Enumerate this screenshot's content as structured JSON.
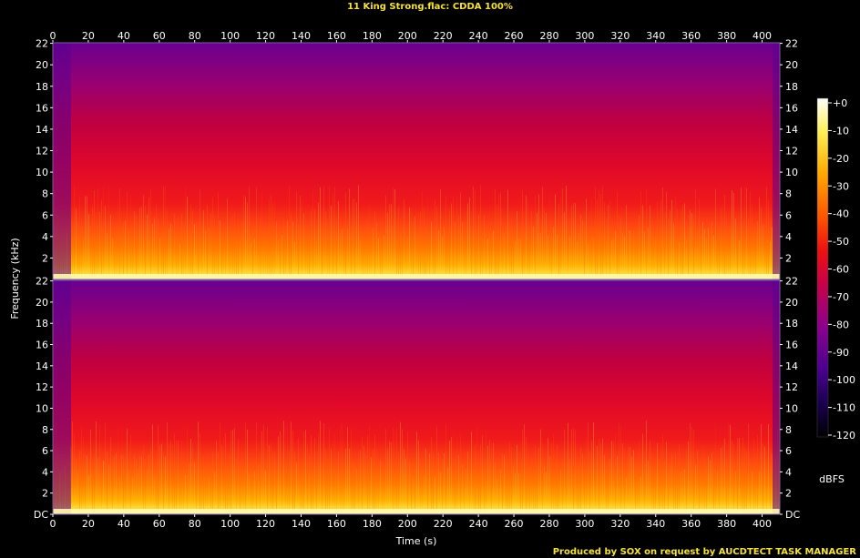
{
  "window": {
    "title": "11 King Strong.flac: CDDA 100%",
    "footer": "Produced by SOX on request by AUCDTECT TASK MANAGER"
  },
  "chart_data": {
    "type": "heatmap",
    "title": "11 King Strong.flac: CDDA 100%",
    "xlabel": "Time (s)",
    "ylabel": "Frequency (kHz)",
    "xlim": [
      0,
      410
    ],
    "x_ticks": [
      "0",
      "20",
      "40",
      "60",
      "80",
      "100",
      "120",
      "140",
      "160",
      "180",
      "200",
      "220",
      "240",
      "260",
      "280",
      "300",
      "320",
      "340",
      "360",
      "380",
      "400"
    ],
    "ylim": [
      0,
      22.05
    ],
    "y_ticks": [
      "DC",
      "2",
      "4",
      "6",
      "8",
      "10",
      "12",
      "14",
      "16",
      "18",
      "20",
      "22"
    ],
    "channels": 2,
    "colorbar": {
      "label": "dBFS",
      "range": [
        -120,
        0
      ],
      "ticks": [
        "+0",
        "-10",
        "-20",
        "-30",
        "-40",
        "-50",
        "-60",
        "-70",
        "-80",
        "-90",
        "-100",
        "-110",
        "-120"
      ]
    },
    "colormap": [
      "#000000",
      "#1a0050",
      "#4b0091",
      "#8a0090",
      "#c8004a",
      "#ee1010",
      "#ff5500",
      "#ffaa00",
      "#ffee55",
      "#ffffff"
    ]
  }
}
